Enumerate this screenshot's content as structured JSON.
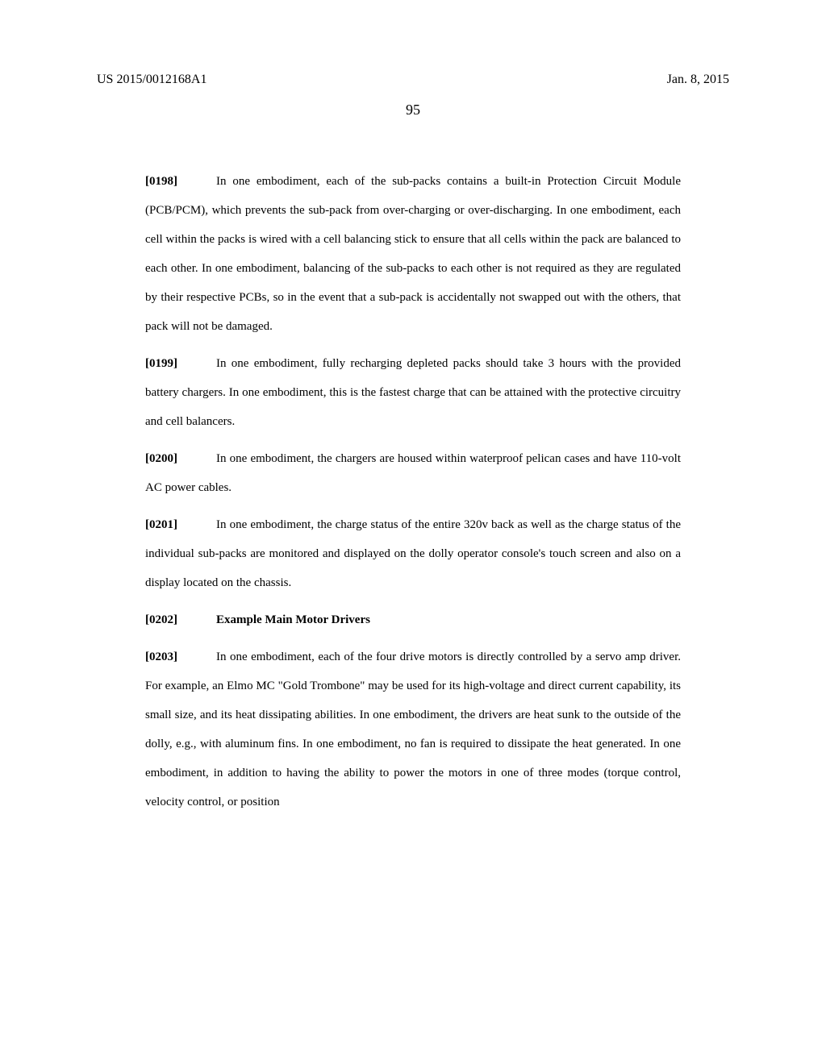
{
  "header": {
    "publication_number": "US 2015/0012168A1",
    "publication_date": "Jan. 8, 2015",
    "page_number": "95"
  },
  "paragraphs": {
    "p0198": {
      "num": "[0198]",
      "text": "In one embodiment, each of the sub-packs contains a built-in Protection Circuit Module (PCB/PCM), which prevents the sub-pack from over-charging or over-discharging.  In one embodiment, each cell within the packs is wired with a cell balancing stick to ensure that all cells within the pack are balanced to each other.  In one embodiment, balancing of the sub-packs to each other is not required as they are regulated by their respective PCBs, so in the event that a sub-pack is accidentally not swapped out with the others, that pack will not be damaged."
    },
    "p0199": {
      "num": "[0199]",
      "text": "In one embodiment, fully recharging depleted packs should take 3 hours with the provided battery chargers.  In one embodiment, this is the fastest charge that can be attained with the protective circuitry and cell balancers."
    },
    "p0200": {
      "num": "[0200]",
      "text": "In one embodiment, the chargers are housed within waterproof pelican cases and have 110-volt AC power cables."
    },
    "p0201": {
      "num": "[0201]",
      "text": "In one embodiment, the charge status of the entire 320v back as well as the charge status of the individual sub-packs are monitored and displayed on the dolly operator console's touch screen and also on a display located on the chassis."
    },
    "p0202": {
      "num": "[0202]",
      "title": "Example Main Motor Drivers"
    },
    "p0203": {
      "num": "[0203]",
      "text": "In one embodiment, each of the four drive motors is directly controlled by a servo amp driver.  For example, an Elmo MC \"Gold Trombone\" may be used for its high-voltage and direct current capability, its small size, and its heat dissipating abilities.  In one embodiment, the drivers are heat sunk to the outside of the dolly, e.g., with aluminum fins.  In one embodiment, no fan is required to dissipate the heat generated.  In one embodiment, in addition to having the ability to power the motors in one of three modes (torque control, velocity control, or position"
    }
  }
}
